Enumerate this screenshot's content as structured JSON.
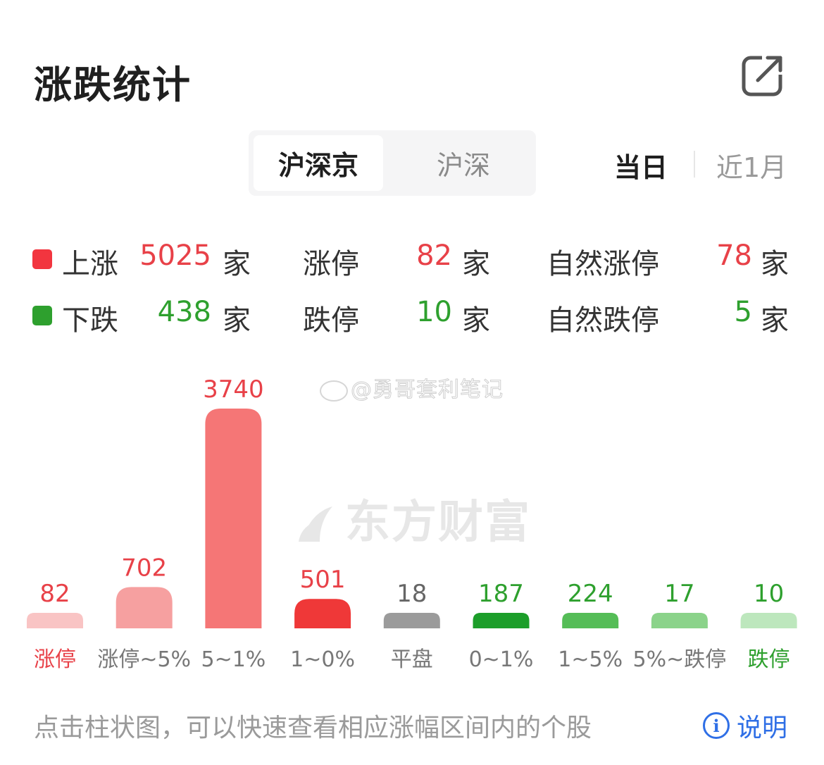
{
  "header": {
    "title": "涨跌统计"
  },
  "market_tabs": [
    {
      "label": "沪深京",
      "active": true
    },
    {
      "label": "沪深",
      "active": false
    }
  ],
  "period_tabs": [
    {
      "label": "当日",
      "active": true
    },
    {
      "label": "近1月",
      "active": false
    }
  ],
  "stats": {
    "up": {
      "label": "上涨",
      "value": "5025",
      "unit": "家",
      "color": "#f2353f"
    },
    "down": {
      "label": "下跌",
      "value": "438",
      "unit": "家",
      "color": "#2ea02e"
    },
    "limit_up": {
      "label": "涨停",
      "value": "82",
      "unit": "家"
    },
    "limit_down": {
      "label": "跌停",
      "value": "10",
      "unit": "家"
    },
    "natural_limit_up": {
      "label": "自然涨停",
      "value": "78",
      "unit": "家"
    },
    "natural_limit_down": {
      "label": "自然跌停",
      "value": "5",
      "unit": "家"
    }
  },
  "watermarks": {
    "weibo": "@勇哥套利笔记",
    "brand": "东方财富"
  },
  "chart_data": {
    "type": "bar",
    "categories": [
      "涨停",
      "涨停~5%",
      "5~1%",
      "1~0%",
      "平盘",
      "0~1%",
      "1~5%",
      "5%~跌停",
      "跌停"
    ],
    "values": [
      82,
      702,
      3740,
      501,
      18,
      187,
      224,
      17,
      10
    ],
    "bar_colors": [
      "#f9c4c4",
      "#f6a0a0",
      "#f57676",
      "#ef3838",
      "#9b9b9b",
      "#1c9e2a",
      "#55bd57",
      "#8bd38a",
      "#bde7bd"
    ],
    "value_label_colors": [
      "#e84148",
      "#e84148",
      "#e84148",
      "#e84148",
      "#666666",
      "#2ea02e",
      "#2ea02e",
      "#2ea02e",
      "#2ea02e"
    ],
    "category_label_colors": [
      "#e84148",
      "#777777",
      "#777777",
      "#777777",
      "#777777",
      "#777777",
      "#777777",
      "#777777",
      "#2ea02e"
    ]
  },
  "footer": {
    "note": "点击柱状图，可以快速查看相应涨幅区间内的个股",
    "info_label": "说明",
    "info_icon": "i"
  }
}
